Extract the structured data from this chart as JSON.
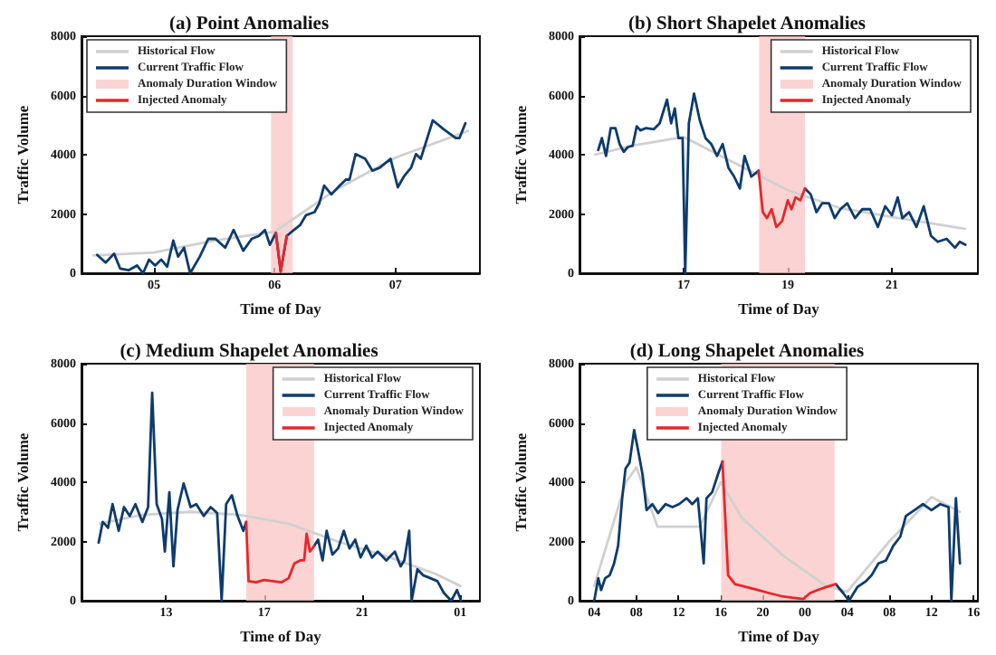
{
  "chart_data": [
    {
      "type": "line",
      "title": "(a) Point Anomalies",
      "xlabel": "Time of Day",
      "ylabel": "Traffic Volume",
      "legend": "top left",
      "grid": false,
      "xlim": [
        4.4,
        7.7
      ],
      "xticks": [
        {
          "value": 5,
          "label": "05"
        },
        {
          "value": 6,
          "label": "06"
        },
        {
          "value": 7,
          "label": "07"
        }
      ],
      "ylim": [
        0,
        8000
      ],
      "yticks": [
        0,
        2000,
        4000,
        6000,
        8000
      ],
      "bands": [
        {
          "axis": "x",
          "from": 5.97,
          "to": 6.15,
          "label": "Anomaly Duration Window",
          "color": "#f9c4c4"
        }
      ],
      "series": [
        {
          "name": "Historical Flow",
          "color": "#d0d0d0",
          "x": [
            4.5,
            5.0,
            5.5,
            6.0,
            6.5,
            7.0,
            7.6
          ],
          "values": [
            600,
            700,
            1100,
            1400,
            2800,
            3900,
            4800
          ]
        },
        {
          "name": "Current Traffic Flow",
          "color": "#0d3b6e",
          "x": [
            4.53,
            4.6,
            4.67,
            4.72,
            4.79,
            4.86,
            4.91,
            4.96,
            5.01,
            5.06,
            5.11,
            5.16,
            5.2,
            5.25,
            5.3,
            5.38,
            5.45,
            5.51,
            5.59,
            5.66,
            5.74,
            5.81,
            5.87,
            5.92,
            5.96,
            6.01,
            6.05,
            6.1,
            6.16,
            6.21,
            6.26,
            6.33,
            6.37,
            6.41,
            6.47,
            6.54,
            6.59,
            6.62,
            6.67,
            6.75,
            6.81,
            6.87,
            6.96,
            7.02,
            7.07,
            7.13,
            7.17,
            7.21,
            7.31,
            7.4,
            7.5,
            7.53,
            7.58
          ],
          "values": [
            620,
            360,
            660,
            160,
            100,
            260,
            0,
            460,
            260,
            460,
            220,
            1100,
            560,
            860,
            0,
            560,
            1160,
            1160,
            860,
            1460,
            760,
            1160,
            1260,
            1460,
            960,
            1360,
            60,
            1260,
            1460,
            1620,
            1960,
            2060,
            2360,
            2960,
            2660,
            2960,
            3160,
            3160,
            4020,
            3860,
            3460,
            3560,
            3860,
            2900,
            3260,
            3560,
            4020,
            3860,
            5160,
            4860,
            4560,
            4560,
            5060
          ]
        },
        {
          "name": "Injected Anomaly",
          "color": "#e8262a",
          "x": [
            6.01,
            6.05,
            6.1
          ],
          "values": [
            1360,
            60,
            1260
          ]
        }
      ]
    },
    {
      "type": "line",
      "title": "(b) Short Shapelet Anomalies",
      "xlabel": "Time of Day",
      "ylabel": "Traffic Volume",
      "legend": "top right",
      "grid": false,
      "xlim": [
        15,
        22.65
      ],
      "xticks": [
        {
          "value": 17,
          "label": "17"
        },
        {
          "value": 19,
          "label": "19"
        },
        {
          "value": 21,
          "label": "21"
        }
      ],
      "ylim": [
        0,
        8000
      ],
      "yticks": [
        0,
        2000,
        4000,
        6000,
        8000
      ],
      "bands": [
        {
          "axis": "x",
          "from": 18.45,
          "to": 19.33,
          "label": "Anomaly Duration Window",
          "color": "#f9c4c4"
        }
      ],
      "series": [
        {
          "name": "Historical Flow",
          "color": "#d0d0d0",
          "x": [
            15.3,
            16,
            17,
            18,
            19,
            20,
            21,
            22.4
          ],
          "values": [
            4000,
            4300,
            4600,
            3700,
            2800,
            2200,
            1900,
            1500
          ]
        },
        {
          "name": "Current Traffic Flow",
          "color": "#0d3b6e",
          "x": [
            15.36,
            15.43,
            15.51,
            15.6,
            15.69,
            15.77,
            15.85,
            15.93,
            16.02,
            16.1,
            16.17,
            16.28,
            16.43,
            16.54,
            16.68,
            16.76,
            16.83,
            16.9,
            16.98,
            17.03,
            17.1,
            17.2,
            17.31,
            17.42,
            17.53,
            17.64,
            17.75,
            17.86,
            17.97,
            18.08,
            18.17,
            18.3,
            18.44,
            18.9,
            19.33,
            19.44,
            19.55,
            19.66,
            19.79,
            19.9,
            20.01,
            20.14,
            20.29,
            20.43,
            20.58,
            20.73,
            20.87,
            21,
            21.11,
            21.2,
            21.33,
            21.47,
            21.61,
            21.75,
            21.88,
            22.05,
            22.21,
            22.3,
            22.41
          ],
          "values": [
            4160,
            4560,
            3960,
            4900,
            4900,
            4360,
            4100,
            4260,
            4300,
            4960,
            4820,
            4900,
            4860,
            5060,
            5860,
            5060,
            5560,
            4560,
            4560,
            0,
            5060,
            6060,
            5160,
            4560,
            4360,
            3960,
            4360,
            3560,
            3260,
            2860,
            3960,
            3260,
            3460,
            null,
            2860,
            2660,
            2060,
            2360,
            2360,
            1860,
            2160,
            2360,
            1860,
            2160,
            2160,
            1560,
            2260,
            1960,
            2560,
            1860,
            2060,
            1560,
            2260,
            1260,
            1060,
            1160,
            860,
            1060,
            960
          ]
        },
        {
          "name": "Injected Anomaly",
          "color": "#e8262a",
          "x": [
            18.44,
            18.52,
            18.6,
            18.69,
            18.78,
            18.89,
            19,
            19.07,
            19.15,
            19.24,
            19.33
          ],
          "values": [
            3460,
            2060,
            1860,
            2160,
            1560,
            1760,
            2460,
            2160,
            2560,
            2460,
            2860
          ]
        }
      ]
    },
    {
      "type": "line",
      "title": "(c) Medium Shapelet Anomalies",
      "xlabel": "Time of Day",
      "ylabel": "Traffic Volume",
      "legend": "top right",
      "grid": false,
      "xlim": [
        "--01-01T09:33",
        "--01-02T01:48"
      ],
      "xticks": [
        {
          "value": "--01-01T13:00",
          "label": "13"
        },
        {
          "value": "--01-01T17:00",
          "label": "17"
        },
        {
          "value": "--01-01T21:00",
          "label": "21"
        },
        {
          "value": "--01-02T01:00",
          "label": "01"
        }
      ],
      "ylim": [
        0,
        8000
      ],
      "yticks": [
        0,
        2000,
        4000,
        6000,
        8000
      ],
      "bands": [
        {
          "axis": "x",
          "from": "--01-01T16:16",
          "to": "--01-01T19:02",
          "label": "Anomaly Duration Window",
          "color": "#f9c4c4"
        }
      ],
      "series": [
        {
          "name": "Historical Flow",
          "color": "#d0d0d0",
          "x": [
            "--01-01T10:18",
            "--01-01T12:00",
            "--01-01T14:00",
            "--01-01T16:00",
            "--01-01T18:00",
            "--01-01T20:00",
            "--01-01T22:00",
            "--01-02T00:00",
            "--01-02T01:00"
          ],
          "values": [
            2600,
            2900,
            3000,
            2900,
            2600,
            2000,
            1500,
            900,
            500
          ]
        },
        {
          "name": "Current Traffic Flow",
          "color": "#0d3b6e",
          "x": [
            "--01-01T10:15",
            "--01-01T10:25",
            "--01-01T10:38",
            "--01-01T10:49",
            "--01-01T11:04",
            "--01-01T11:17",
            "--01-01T11:31",
            "--01-01T11:45",
            "--01-01T12:02",
            "--01-01T12:16",
            "--01-01T12:26",
            "--01-01T12:37",
            "--01-01T12:50",
            "--01-01T12:57",
            "--01-01T13:08",
            "--01-01T13:18",
            "--01-01T13:28",
            "--01-01T13:43",
            "--01-01T14:00",
            "--01-01T14:14",
            "--01-01T14:32",
            "--01-01T14:49",
            "--01-01T15:05",
            "--01-01T15:16",
            "--01-01T15:27",
            "--01-01T15:41",
            "--01-01T15:55",
            "--01-01T16:09",
            "--01-01T16:16",
            "--01-01T17:30",
            "--01-01T19:02",
            "--01-01T19:12",
            "--01-01T19:23",
            "--01-01T19:33",
            "--01-01T19:47",
            "--01-01T20:01",
            "--01-01T20:15",
            "--01-01T20:29",
            "--01-01T20:43",
            "--01-01T20:56",
            "--01-01T21:10",
            "--01-01T21:24",
            "--01-01T21:38",
            "--01-01T21:59",
            "--01-01T22:20",
            "--01-01T22:34",
            "--01-01T22:43",
            "--01-01T22:55",
            "--01-01T23:01",
            "--01-01T23:15",
            "--01-01T23:29",
            "--01-01T23:47",
            "--01-02T00:04",
            "--01-02T00:20",
            "--01-02T00:38",
            "--01-02T00:52",
            "--01-02T01:02"
          ],
          "values": [
            1960,
            2660,
            2460,
            3260,
            2360,
            3160,
            2860,
            3260,
            2660,
            3160,
            7020,
            3260,
            2760,
            1660,
            3660,
            1160,
            3060,
            3960,
            3160,
            3260,
            2860,
            3160,
            2960,
            0,
            3260,
            3560,
            2860,
            2360,
            2660,
            null,
            1840,
            2060,
            1360,
            2360,
            1560,
            1760,
            2360,
            1760,
            2060,
            1460,
            1860,
            1460,
            1660,
            1360,
            1660,
            1160,
            1360,
            2360,
            0,
            1060,
            860,
            760,
            660,
            260,
            0,
            360,
            0
          ]
        },
        {
          "name": "Injected Anomaly",
          "color": "#e8262a",
          "x": [
            "--01-01T16:16",
            "--01-01T16:22",
            "--01-01T16:40",
            "--01-01T17:00",
            "--01-01T17:21",
            "--01-01T17:42",
            "--01-01T18:00",
            "--01-01T18:14",
            "--01-01T18:28",
            "--01-01T18:38",
            "--01-01T18:44",
            "--01-01T18:52",
            "--01-01T19:02"
          ],
          "values": [
            2660,
            660,
            620,
            700,
            660,
            620,
            760,
            1260,
            1360,
            1360,
            2260,
            1660,
            1840
          ]
        }
      ]
    },
    {
      "type": "line",
      "title": "(d) Long Shapelet Anomalies",
      "xlabel": "Time of Day",
      "ylabel": "Traffic Volume",
      "legend": "top",
      "grid": false,
      "xlim": [
        "--01-01T02:36",
        "--01-02T16:24"
      ],
      "xticks": [
        {
          "value": "--01-01T04:00",
          "label": "04"
        },
        {
          "value": "--01-01T08:00",
          "label": "08"
        },
        {
          "value": "--01-01T12:00",
          "label": "12"
        },
        {
          "value": "--01-01T16:00",
          "label": "16"
        },
        {
          "value": "--01-01T20:00",
          "label": "20"
        },
        {
          "value": "--01-02T00:00",
          "label": "00"
        },
        {
          "value": "--01-02T04:00",
          "label": "04"
        },
        {
          "value": "--01-02T08:00",
          "label": "08"
        },
        {
          "value": "--01-02T12:00",
          "label": "12"
        },
        {
          "value": "--01-02T16:00",
          "label": "16"
        }
      ],
      "ylim": [
        0,
        8000
      ],
      "yticks": [
        0,
        2000,
        4000,
        6000,
        8000
      ],
      "bands": [
        {
          "axis": "x",
          "from": "--01-01T16:03",
          "to": "--01-02T02:48",
          "label": "Anomaly Duration Window",
          "color": "#f9c4c4"
        }
      ],
      "series": [
        {
          "name": "Historical Flow",
          "color": "#d0d0d0",
          "x": [
            "--01-01T04:00",
            "--01-01T07:00",
            "--01-01T08:00",
            "--01-01T10:00",
            "--01-01T14:00",
            "--01-01T16:00",
            "--01-01T18:00",
            "--01-01T22:00",
            "--01-02T02:00",
            "--01-02T04:00",
            "--01-02T08:00",
            "--01-02T12:00",
            "--01-02T14:42"
          ],
          "values": [
            500,
            4000,
            4500,
            2500,
            2500,
            4000,
            2800,
            1500,
            500,
            300,
            2000,
            3500,
            3000
          ]
        },
        {
          "name": "Current Traffic Flow",
          "color": "#0d3b6e",
          "x": [
            "--01-01T04:00",
            "--01-01T04:23",
            "--01-01T04:39",
            "--01-01T05:02",
            "--01-01T05:28",
            "--01-01T05:53",
            "--01-01T06:16",
            "--01-01T06:39",
            "--01-01T06:58",
            "--01-01T07:21",
            "--01-01T07:47",
            "--01-01T08:10",
            "--01-01T08:35",
            "--01-01T08:58",
            "--01-01T09:31",
            "--01-01T10:03",
            "--01-01T10:46",
            "--01-01T11:25",
            "--01-01T12:03",
            "--01-01T12:46",
            "--01-01T13:18",
            "--01-01T13:50",
            "--01-01T14:23",
            "--01-01T14:39",
            "--01-01T15:11",
            "--01-01T15:44",
            "--01-01T16:10",
            "--01-01T21:00",
            "--01-02T02:55",
            "--01-02T03:37",
            "--01-02T04:10",
            "--01-02T04:58",
            "--01-02T05:47",
            "--01-02T06:19",
            "--01-02T06:58",
            "--01-02T07:41",
            "--01-02T08:23",
            "--01-02T09:02",
            "--01-02T09:34",
            "--01-02T10:23",
            "--01-02T11:11",
            "--01-02T12:00",
            "--01-02T12:49",
            "--01-02T13:37",
            "--01-02T13:53",
            "--01-02T14:19",
            "--01-02T14:42"
          ],
          "values": [
            0,
            760,
            360,
            760,
            860,
            1260,
            1860,
            3460,
            4460,
            4660,
            5760,
            5060,
            4260,
            3060,
            3260,
            2960,
            3260,
            3160,
            3260,
            3460,
            3260,
            3460,
            1260,
            3460,
            3660,
            4260,
            4700,
            null,
            560,
            260,
            0,
            460,
            660,
            860,
            1260,
            1360,
            1860,
            2160,
            2860,
            3060,
            3260,
            3060,
            3260,
            3160,
            0,
            3460,
            1260
          ]
        },
        {
          "name": "Injected Anomaly",
          "color": "#e8262a",
          "x": [
            "--01-01T16:10",
            "--01-01T16:42",
            "--01-01T17:21",
            "--01-01T18:26",
            "--01-01T19:31",
            "--01-01T20:35",
            "--01-01T21:41",
            "--01-01T22:46",
            "--01-01T23:50",
            "--01-02T00:29",
            "--01-02T01:11",
            "--01-02T02:00",
            "--01-02T02:55"
          ],
          "values": [
            4700,
            860,
            560,
            460,
            360,
            260,
            160,
            100,
            60,
            260,
            360,
            460,
            560
          ]
        }
      ]
    }
  ]
}
